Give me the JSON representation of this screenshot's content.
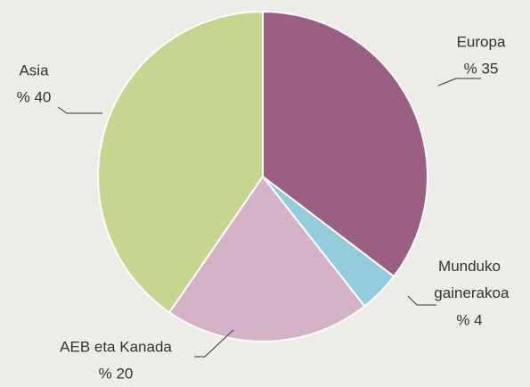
{
  "chart_data": {
    "type": "pie",
    "categories": [
      "Europa",
      "Munduko gainerakoa",
      "AEB eta Kanada",
      "Asia"
    ],
    "values": [
      35,
      4,
      20,
      40
    ],
    "value_labels": [
      "% 35",
      "% 4",
      "% 20",
      "% 40"
    ],
    "colors": [
      "#9b5f82",
      "#93cddd",
      "#d4b3c6",
      "#c6d68f"
    ]
  }
}
